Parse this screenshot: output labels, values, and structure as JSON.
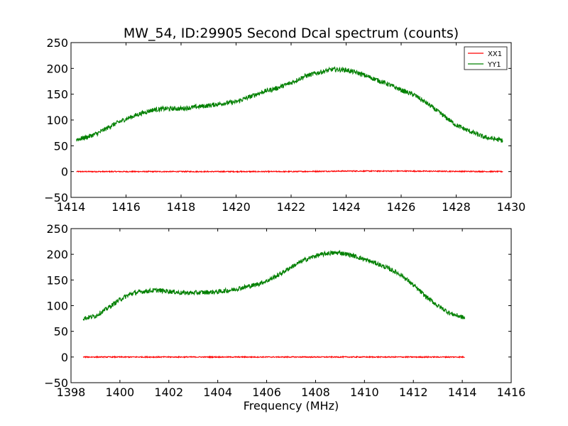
{
  "figure": {
    "title": "MW_54, ID:29905 Second Dcal spectrum (counts)",
    "xlabel": "Frequency (MHz)"
  },
  "colors": {
    "XX1": "#ff0000",
    "YY1": "#008000",
    "axes": "#000000",
    "background": "#ffffff"
  },
  "chart_data": [
    {
      "type": "line",
      "xlabel": "",
      "ylabel": "",
      "xlim": [
        1414,
        1430
      ],
      "ylim": [
        -50,
        250
      ],
      "xticks": [
        "1414",
        "1416",
        "1418",
        "1420",
        "1422",
        "1424",
        "1426",
        "1428",
        "1430"
      ],
      "yticks": [
        "−50",
        "0",
        "50",
        "100",
        "150",
        "200",
        "250"
      ],
      "legend": {
        "placement": "top-right",
        "entries": [
          "XX1",
          "YY1"
        ]
      },
      "grid": false,
      "series": [
        {
          "name": "XX1",
          "x": [
            1414.2,
            1418,
            1422,
            1424,
            1426,
            1429.7
          ],
          "values": [
            0,
            0,
            0,
            1,
            1,
            0
          ],
          "noise": 1.0
        },
        {
          "name": "YY1",
          "x": [
            1414.2,
            1414.6,
            1415.0,
            1415.5,
            1416.0,
            1416.5,
            1417.0,
            1417.5,
            1418.0,
            1418.5,
            1419.0,
            1419.5,
            1420.0,
            1420.5,
            1421.0,
            1421.5,
            1422.0,
            1422.5,
            1423.0,
            1423.5,
            1424.0,
            1424.5,
            1425.0,
            1425.5,
            1426.0,
            1426.5,
            1427.0,
            1427.5,
            1428.0,
            1428.5,
            1429.0,
            1429.7
          ],
          "values": [
            62,
            67,
            75,
            90,
            102,
            112,
            120,
            122,
            122,
            125,
            128,
            132,
            135,
            145,
            155,
            162,
            172,
            185,
            192,
            198,
            197,
            190,
            180,
            170,
            158,
            148,
            130,
            110,
            90,
            78,
            67,
            60
          ],
          "noise": 4.5
        }
      ]
    },
    {
      "type": "line",
      "xlabel": "Frequency (MHz)",
      "ylabel": "",
      "xlim": [
        1398,
        1416
      ],
      "ylim": [
        -50,
        250
      ],
      "xticks": [
        "1398",
        "1400",
        "1402",
        "1404",
        "1406",
        "1408",
        "1410",
        "1412",
        "1414",
        "1416"
      ],
      "yticks": [
        "−50",
        "0",
        "50",
        "100",
        "150",
        "200",
        "250"
      ],
      "grid": false,
      "series": [
        {
          "name": "XX1",
          "x": [
            1398.5,
            1402,
            1406,
            1410,
            1414.1
          ],
          "values": [
            0,
            0,
            0,
            0,
            0
          ],
          "noise": 1.0
        },
        {
          "name": "YY1",
          "x": [
            1398.5,
            1399.0,
            1399.5,
            1400.0,
            1400.5,
            1401.0,
            1401.5,
            1402.0,
            1402.5,
            1403.0,
            1403.5,
            1404.0,
            1404.5,
            1405.0,
            1405.5,
            1406.0,
            1406.5,
            1407.0,
            1407.5,
            1408.0,
            1408.5,
            1409.0,
            1409.5,
            1410.0,
            1410.5,
            1411.0,
            1411.5,
            1412.0,
            1412.5,
            1413.0,
            1413.5,
            1414.1
          ],
          "values": [
            75,
            80,
            95,
            112,
            124,
            128,
            130,
            128,
            125,
            125,
            126,
            127,
            130,
            135,
            140,
            148,
            160,
            175,
            188,
            197,
            202,
            203,
            198,
            190,
            182,
            172,
            160,
            140,
            118,
            100,
            85,
            76
          ],
          "noise": 4.5
        }
      ]
    }
  ]
}
